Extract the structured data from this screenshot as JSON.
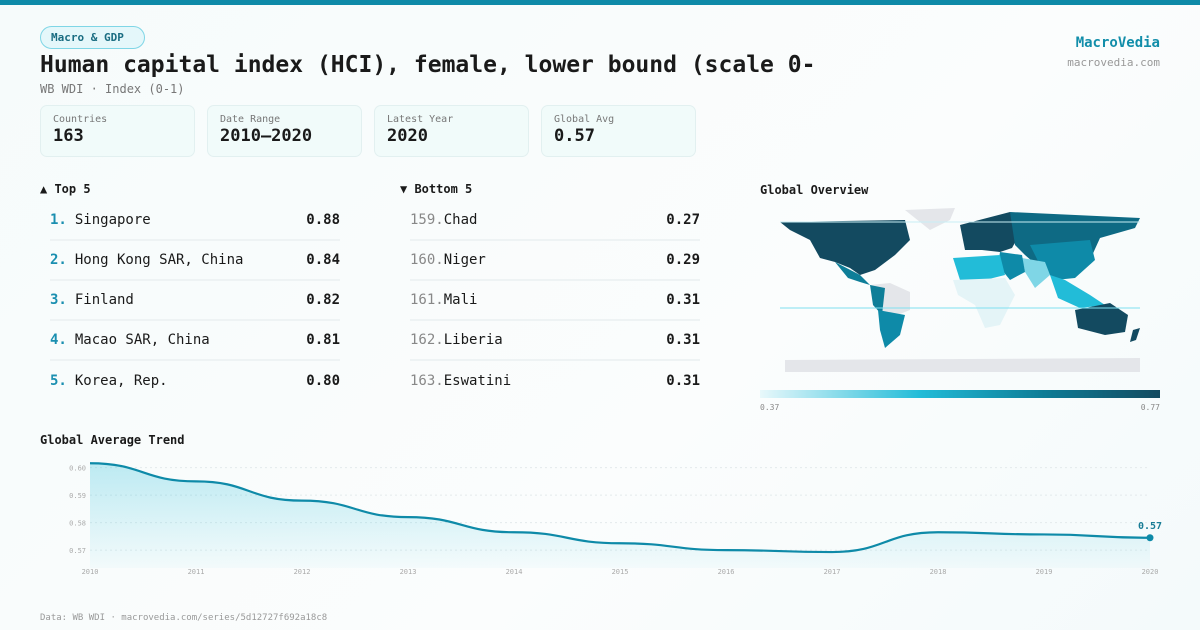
{
  "category": "Macro & GDP",
  "title": "Human capital index (HCI), female, lower bound (scale 0-",
  "subtitle": "WB WDI · Index (0-1)",
  "brand": {
    "name": "MacroVedia",
    "url": "macrovedia.com"
  },
  "stats": [
    {
      "label": "Countries",
      "value": "163"
    },
    {
      "label": "Date Range",
      "value": "2010–2020"
    },
    {
      "label": "Latest Year",
      "value": "2020"
    },
    {
      "label": "Global Avg",
      "value": "0.57"
    }
  ],
  "top": {
    "title": "▲ Top 5",
    "items": [
      {
        "rank": "1.",
        "name": "Singapore",
        "value": "0.88"
      },
      {
        "rank": "2.",
        "name": "Hong Kong SAR, China",
        "value": "0.84"
      },
      {
        "rank": "3.",
        "name": "Finland",
        "value": "0.82"
      },
      {
        "rank": "4.",
        "name": "Macao SAR, China",
        "value": "0.81"
      },
      {
        "rank": "5.",
        "name": "Korea, Rep.",
        "value": "0.80"
      }
    ]
  },
  "bottom": {
    "title": "▼ Bottom 5",
    "items": [
      {
        "rank": "159.",
        "name": "Chad",
        "value": "0.27"
      },
      {
        "rank": "160.",
        "name": "Niger",
        "value": "0.29"
      },
      {
        "rank": "161.",
        "name": "Mali",
        "value": "0.31"
      },
      {
        "rank": "162.",
        "name": "Liberia",
        "value": "0.31"
      },
      {
        "rank": "163.",
        "name": "Eswatini",
        "value": "0.31"
      }
    ]
  },
  "map": {
    "title": "Global Overview",
    "legend_min": "0.37",
    "legend_max": "0.77",
    "colors": [
      "#e8f8fb",
      "#22bcd8",
      "#0e7e98",
      "#134a60"
    ],
    "nodata": "#e4e6ea"
  },
  "chart_data": {
    "type": "area",
    "title": "Global Average Trend",
    "x": [
      2010,
      2011,
      2012,
      2013,
      2014,
      2015,
      2016,
      2017,
      2018,
      2019,
      2020
    ],
    "y": [
      0.6016,
      0.595,
      0.588,
      0.582,
      0.5765,
      0.5725,
      0.57,
      0.5693,
      0.5765,
      0.5757,
      0.5745
    ],
    "yticks": [
      "0.60",
      "0.59",
      "0.58",
      "0.57"
    ],
    "ylim": [
      0.5635,
      0.6035
    ],
    "grid": true,
    "last_label": "0.57",
    "color": "#0e8aa8"
  },
  "footer": "Data: WB WDI · macrovedia.com/series/5d12727f692a18c8"
}
